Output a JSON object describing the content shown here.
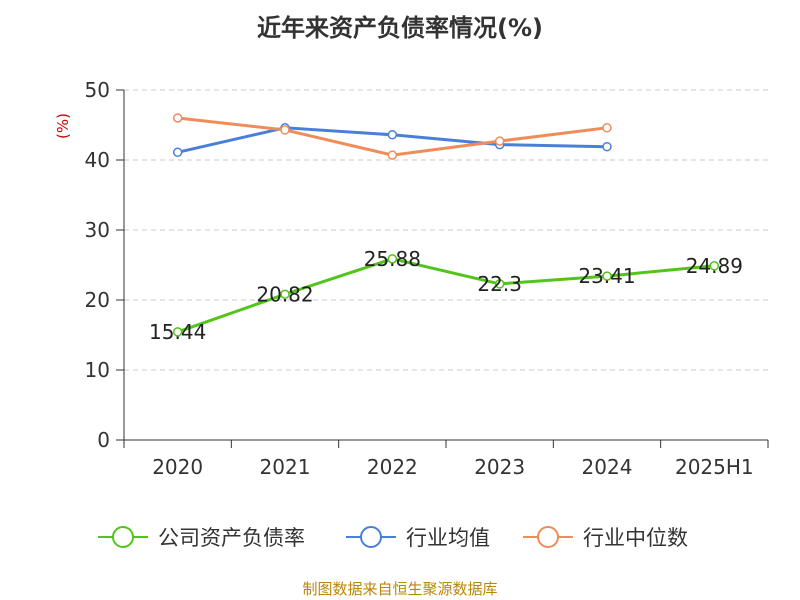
{
  "chart_data": {
    "type": "line",
    "title": "近年来资产负债率情况(%)",
    "ylabel": "(%)",
    "categories": [
      "2020",
      "2021",
      "2022",
      "2023",
      "2024",
      "2025H1"
    ],
    "ylim": [
      0,
      50
    ],
    "yticks": [
      0,
      10,
      20,
      30,
      40,
      50
    ],
    "grid": true,
    "legend_position": "bottom",
    "series": [
      {
        "name": "公司资产负债率",
        "color": "#52c41a",
        "values": [
          15.44,
          20.82,
          25.88,
          22.3,
          23.41,
          24.89
        ],
        "labels": [
          "15.44",
          "20.82",
          "25.88",
          "22.3",
          "23.41",
          "24.89"
        ]
      },
      {
        "name": "行业均值",
        "color": "#4a7fd9",
        "values": [
          41.1,
          44.6,
          43.6,
          42.2,
          41.9,
          null
        ]
      },
      {
        "name": "行业中位数",
        "color": "#f08c5a",
        "values": [
          46.0,
          44.3,
          40.7,
          42.7,
          44.6,
          null
        ]
      }
    ]
  },
  "footer": {
    "source": "制图数据来自恒生聚源数据库"
  }
}
